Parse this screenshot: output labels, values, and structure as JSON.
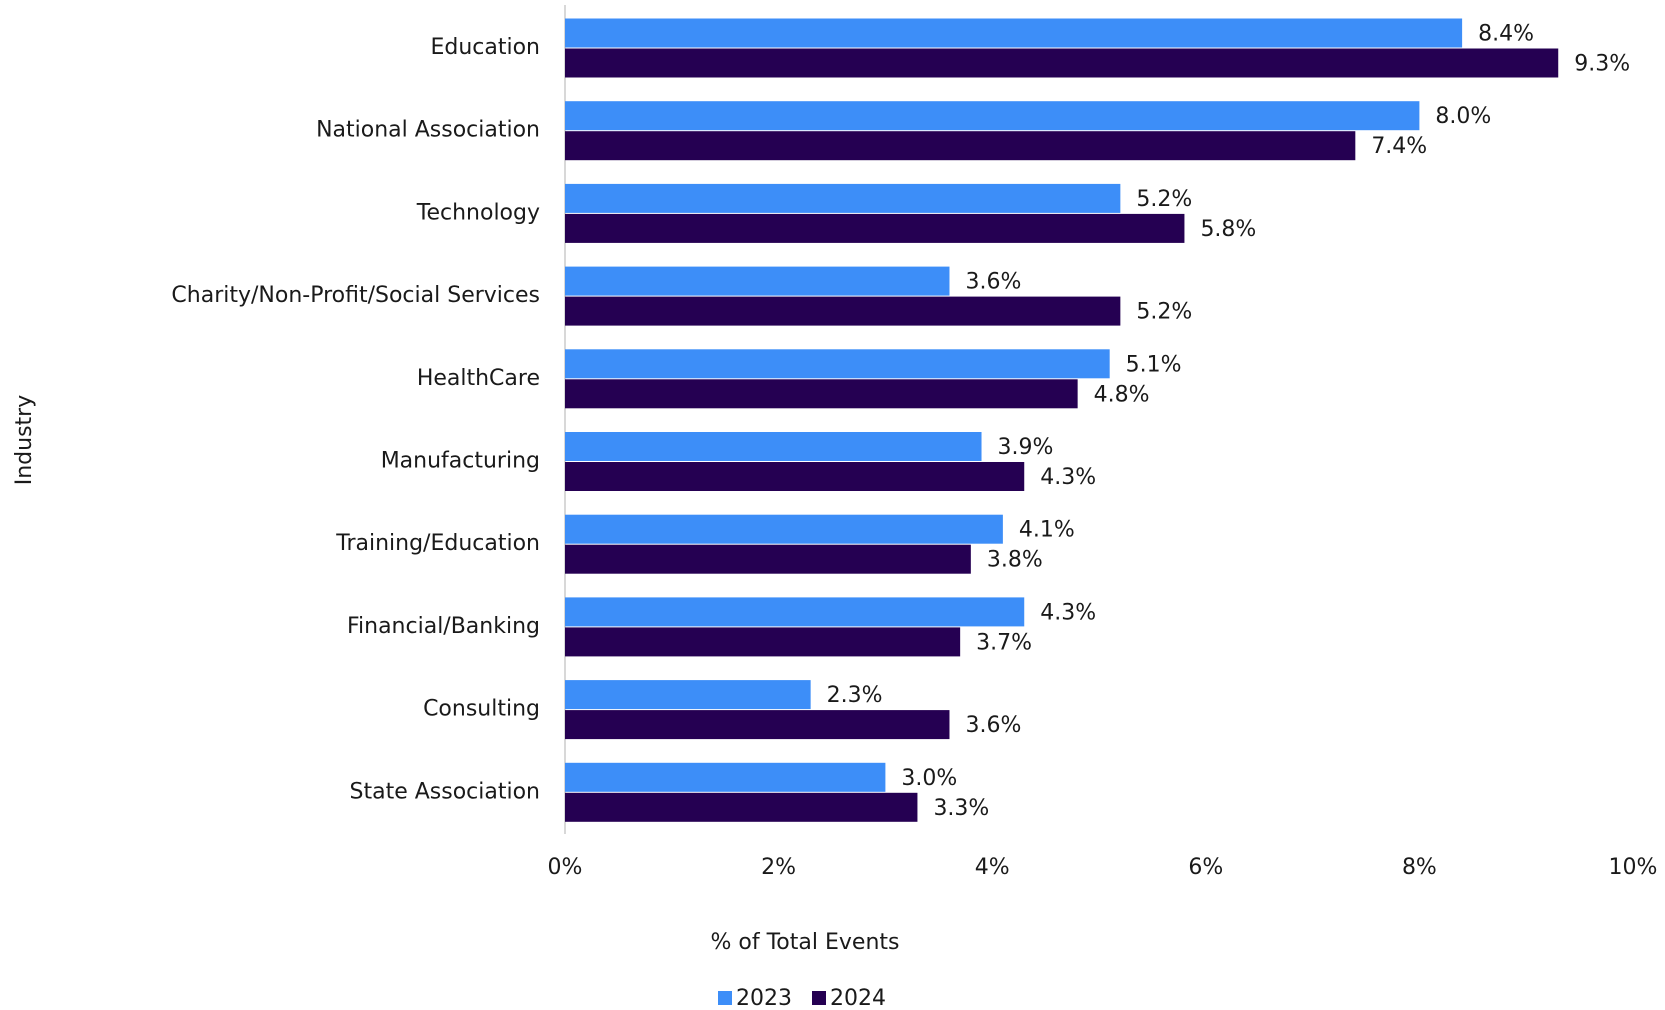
{
  "chart_data": {
    "type": "hbar",
    "categories": [
      "Education",
      "National Association",
      "Technology",
      "Charity/Non-Profit/Social Services",
      "HealthCare",
      "Manufacturing",
      "Training/Education",
      "Financial/Banking",
      "Consulting",
      "State Association"
    ],
    "series": [
      {
        "name": "2023",
        "color": "#3d8ef8",
        "values": [
          8.4,
          8.0,
          5.2,
          3.6,
          5.1,
          3.9,
          4.1,
          4.3,
          2.3,
          3.0
        ],
        "value_labels": [
          "8.4%",
          "8.0%",
          "5.2%",
          "3.6%",
          "5.1%",
          "3.9%",
          "4.1%",
          "4.3%",
          "2.3%",
          "3.0%"
        ]
      },
      {
        "name": "2024",
        "color": "#250052",
        "values": [
          9.3,
          7.4,
          5.8,
          5.2,
          4.8,
          4.3,
          3.8,
          3.7,
          3.6,
          3.3
        ],
        "value_labels": [
          "9.3%",
          "7.4%",
          "5.8%",
          "5.2%",
          "4.8%",
          "4.3%",
          "3.8%",
          "3.7%",
          "3.6%",
          "3.3%"
        ]
      }
    ],
    "xlabel": "% of Total Events",
    "ylabel": "Industry",
    "xlim": [
      0,
      10
    ],
    "xticks": [
      {
        "value": 0,
        "label": "0%"
      },
      {
        "value": 2,
        "label": "2%"
      },
      {
        "value": 4,
        "label": "4%"
      },
      {
        "value": 6,
        "label": "6%"
      },
      {
        "value": 8,
        "label": "8%"
      },
      {
        "value": 10,
        "label": "10%"
      }
    ],
    "grid": false,
    "legend": "bottom"
  }
}
